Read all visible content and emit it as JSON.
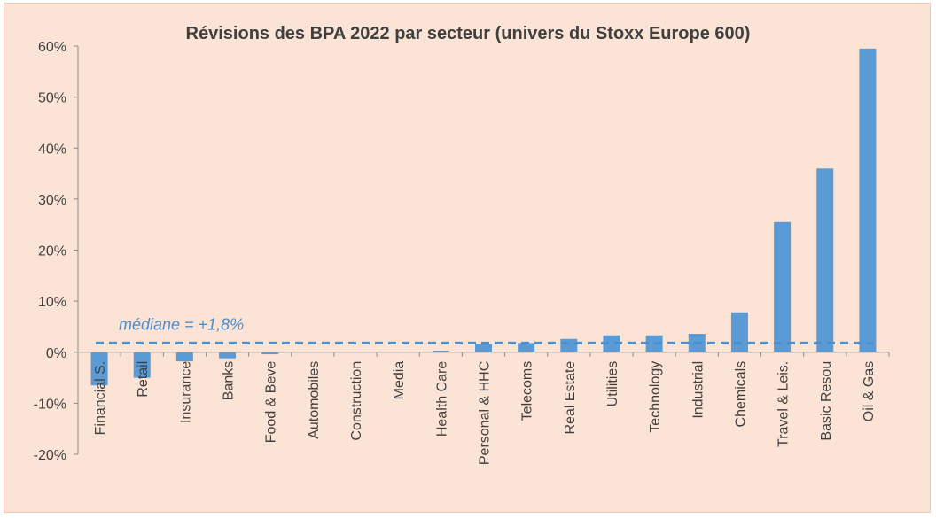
{
  "chart_data": {
    "type": "bar",
    "title": "Révisions  des BPA 2022  par secteur  (univers  du  Stoxx Europe 600)",
    "categories": [
      "Financial S.",
      "Retail",
      "Insurance",
      "Banks",
      "Food & Beve",
      "Automobiles",
      "Construction",
      "Media",
      "Health Care",
      "Personal & HHC",
      "Telecoms",
      "Real Estate",
      "Utilities",
      "Technology",
      "Industrial",
      "Chemicals",
      "Travel & Leis.",
      "Basic Resou",
      "Oil & Gas"
    ],
    "values": [
      -6.5,
      -5.0,
      -1.8,
      -1.2,
      -0.4,
      0.0,
      0.0,
      0.0,
      0.3,
      1.6,
      1.8,
      2.6,
      3.3,
      3.3,
      3.6,
      7.8,
      25.5,
      36.0,
      59.5
    ],
    "ylim": [
      -20,
      60
    ],
    "yticks": [
      "-20%",
      "-10%",
      "0%",
      "10%",
      "20%",
      "30%",
      "40%",
      "50%",
      "60%"
    ],
    "ytick_values": [
      -20,
      -10,
      0,
      10,
      20,
      30,
      40,
      50,
      60
    ],
    "median": {
      "value": 1.8,
      "label": "médiane = +1,8%"
    },
    "bar_color": "#5b9bd5",
    "median_color": "#4a8fd0",
    "grid": false
  }
}
